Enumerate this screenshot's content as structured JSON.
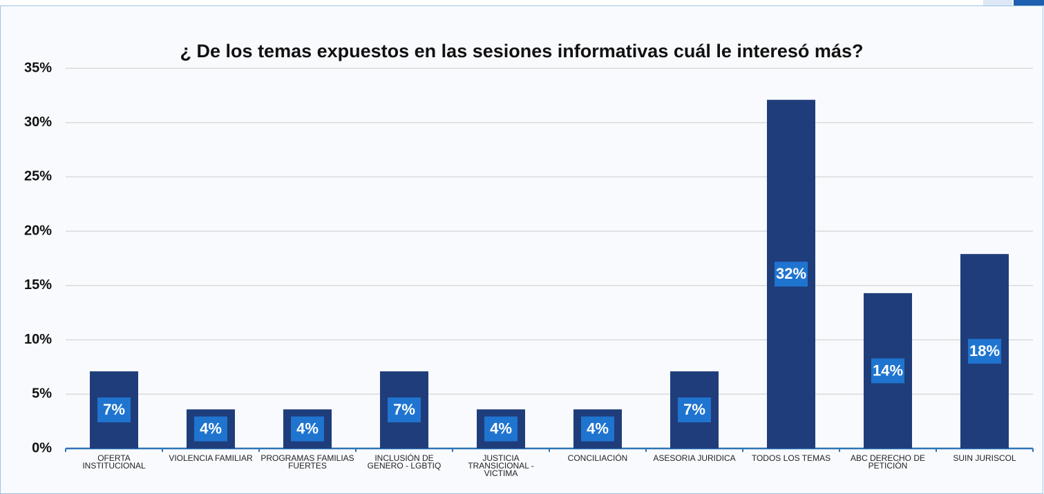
{
  "chart_data": {
    "type": "bar",
    "title": "¿ De los temas expuestos en las sesiones informativas cuál le interesó más?",
    "categories": [
      "OFERTA INSTITUCIONAL",
      "VIOLENCIA FAMILIAR",
      "PROGRAMAS FAMILIAS FUERTES",
      "INCLUSIÓN DE GENERO - LGBTIQ",
      "JUSTICIA TRANSICIONAL - VICTIMA",
      "CONCILIACIÓN",
      "ASESORIA JURIDICA",
      "TODOS LOS TEMAS",
      "ABC DERECHO DE PETICIÓN",
      "SUIN JURISCOL"
    ],
    "values": [
      7.1,
      3.6,
      3.6,
      7.1,
      3.6,
      3.6,
      7.1,
      32.1,
      14.3,
      17.9
    ],
    "value_labels": [
      "7%",
      "4%",
      "4%",
      "7%",
      "4%",
      "4%",
      "7%",
      "32%",
      "14%",
      "18%"
    ],
    "color": "#1f3d7a",
    "ylim": [
      0,
      35
    ],
    "yticks": [
      {
        "value": 0,
        "label": "0%"
      },
      {
        "value": 5,
        "label": "5%"
      },
      {
        "value": 10,
        "label": "10%"
      },
      {
        "value": 15,
        "label": "15%"
      },
      {
        "value": 20,
        "label": "20%"
      },
      {
        "value": 25,
        "label": "25%"
      },
      {
        "value": 30,
        "label": "30%"
      },
      {
        "value": 35,
        "label": "35%"
      }
    ],
    "grid": true
  }
}
